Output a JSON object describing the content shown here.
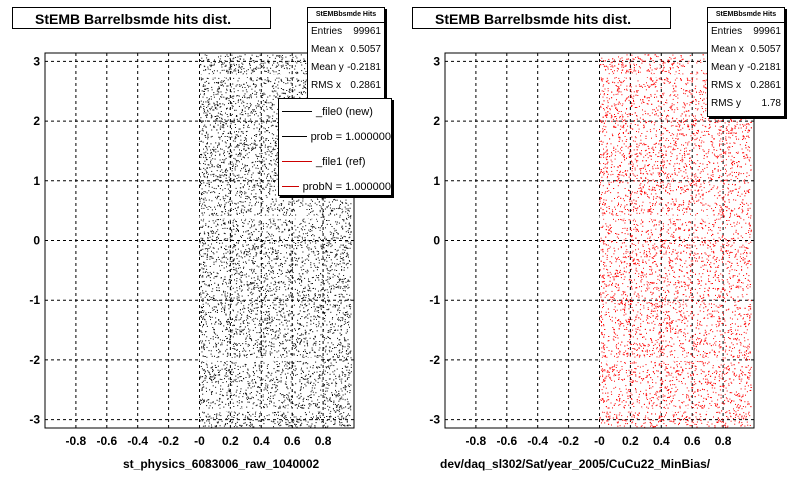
{
  "chart_data": [
    {
      "type": "scatter",
      "title": "StEMB Barrelbsmde hits dist.",
      "xlabel": "st_physics_6083006_raw_1040002",
      "ylabel": "",
      "xlim": [
        -1.0,
        1.0
      ],
      "ylim": [
        -3.14,
        3.14
      ],
      "x_ticks": [
        "-0.8",
        "-0.6",
        "-0.4",
        "-0.2",
        "-0",
        "0.2",
        "0.4",
        "0.6",
        "0.8"
      ],
      "y_ticks": [
        "-3",
        "-2",
        "-1",
        "0",
        "1",
        "2",
        "3"
      ],
      "grid": true,
      "marker_color": "#000000",
      "points_x_range": [
        0.0,
        0.98
      ],
      "stats": {
        "title": "StEMBbsmde Hits",
        "rows": [
          {
            "label": "Entries",
            "value": "99961"
          },
          {
            "label": "Mean x",
            "value": "0.5057"
          },
          {
            "label": "Mean y",
            "value": "-0.2181"
          },
          {
            "label": "RMS x",
            "value": "0.2861"
          }
        ]
      },
      "legend": {
        "placement": "top-right",
        "entries": [
          {
            "label": "_file0 (new)",
            "color": "#000000"
          },
          {
            "label": "prob = 1.000000",
            "color": "#000000"
          },
          {
            "label": "_file1 (ref)",
            "color": "#cc0000"
          },
          {
            "label": "probN = 1.000000",
            "color": "#cc0000"
          }
        ]
      }
    },
    {
      "type": "scatter",
      "title": "StEMB Barrelbsmde hits dist.",
      "xlabel": "dev/daq_sl302/Sat/year_2005/CuCu22_MinBias/",
      "ylabel": "",
      "xlim": [
        -1.0,
        1.0
      ],
      "ylim": [
        -3.14,
        3.14
      ],
      "x_ticks": [
        "-0.8",
        "-0.6",
        "-0.4",
        "-0.2",
        "-0",
        "0.2",
        "0.4",
        "0.6",
        "0.8"
      ],
      "y_ticks": [
        "-3",
        "-2",
        "-1",
        "0",
        "1",
        "2",
        "3"
      ],
      "grid": true,
      "marker_color": "#ff0000",
      "points_x_range": [
        0.0,
        0.98
      ],
      "stats": {
        "title": "StEMBbsmde Hits",
        "rows": [
          {
            "label": "Entries",
            "value": "99961"
          },
          {
            "label": "Mean x",
            "value": "0.5057"
          },
          {
            "label": "Mean y",
            "value": "-0.2181"
          },
          {
            "label": "RMS x",
            "value": "0.2861"
          },
          {
            "label": "RMS y",
            "value": "1.78"
          }
        ]
      }
    }
  ]
}
